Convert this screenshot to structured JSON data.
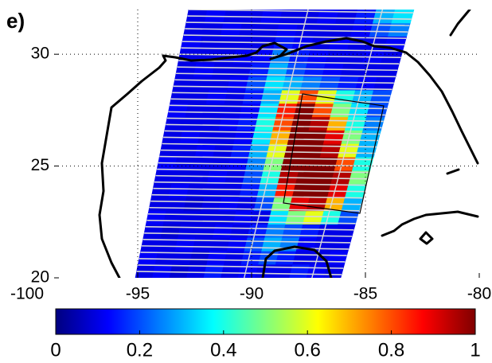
{
  "panel_label": "e)",
  "chart_data": {
    "type": "heatmap",
    "colormap": "jet",
    "grid": true,
    "xlim": [
      -100,
      -80
    ],
    "xticks": [
      -100,
      -95,
      -90,
      -85,
      -80
    ],
    "ylim": [
      20,
      32
    ],
    "yticks": [
      20,
      25,
      30
    ],
    "values": [
      [
        0.1,
        0.12,
        0.08,
        0.1,
        0.15,
        0.1,
        0.12,
        0.1,
        0.1,
        0.15,
        0.12,
        0.1
      ],
      [
        0.12,
        0.1,
        0.1,
        0.08,
        0.12,
        0.1,
        0.15,
        0.2,
        0.15,
        0.1,
        0.1,
        0.12
      ],
      [
        0.1,
        0.1,
        0.12,
        0.1,
        0.1,
        0.12,
        0.2,
        0.3,
        0.25,
        0.12,
        0.1,
        0.1
      ],
      [
        0.1,
        0.08,
        0.1,
        0.1,
        0.12,
        0.1,
        0.15,
        0.25,
        0.2,
        0.15,
        0.1,
        0.1
      ],
      [
        0.12,
        0.1,
        0.1,
        0.1,
        0.1,
        0.12,
        0.1,
        0.35,
        0.5,
        0.6,
        0.4,
        0.2
      ],
      [
        0.1,
        0.1,
        0.08,
        0.1,
        0.12,
        0.1,
        0.2,
        0.5,
        0.9,
        0.95,
        0.7,
        0.3
      ],
      [
        0.1,
        0.12,
        0.1,
        0.1,
        0.1,
        0.15,
        0.3,
        0.85,
        1,
        1,
        0.9,
        0.4
      ],
      [
        0.1,
        0.1,
        0.1,
        0.12,
        0.1,
        0.2,
        0.4,
        0.95,
        1,
        1,
        0.95,
        0.5
      ],
      [
        0.12,
        0.1,
        0.1,
        0.1,
        0.12,
        0.25,
        0.5,
        1,
        1,
        1,
        0.8,
        0.4
      ],
      [
        0.1,
        0.1,
        0.12,
        0.1,
        0.15,
        0.3,
        0.6,
        1,
        1,
        0.95,
        0.6,
        0.3
      ],
      [
        0.1,
        0.12,
        0.1,
        0.1,
        0.12,
        0.35,
        0.7,
        1,
        1,
        0.9,
        0.5,
        0.3
      ],
      [
        0.1,
        0.1,
        0.1,
        0.12,
        0.15,
        0.4,
        0.8,
        1,
        0.95,
        0.7,
        0.4,
        0.25
      ],
      [
        0.12,
        0.1,
        0.1,
        0.1,
        0.12,
        0.35,
        0.85,
        1,
        0.8,
        0.5,
        0.35,
        0.2
      ],
      [
        0.1,
        0.1,
        0.12,
        0.1,
        0.15,
        0.3,
        0.6,
        0.8,
        0.6,
        0.4,
        0.3,
        0.2
      ],
      [
        0.1,
        0.1,
        0.1,
        0.12,
        0.2,
        0.35,
        0.3,
        0.25,
        0.2,
        0.15,
        0.12,
        0.1
      ],
      [
        0.1,
        0.12,
        0.1,
        0.1,
        0.15,
        0.3,
        0.2,
        0.15,
        0.12,
        0.1,
        0.1,
        0.1
      ],
      [
        0.1,
        0.1,
        0.1,
        0.12,
        0.12,
        0.25,
        0.15,
        0.12,
        0.1,
        0.1,
        0.12,
        0.1
      ],
      [
        0.12,
        0.1,
        0.1,
        0.1,
        0.1,
        0.15,
        0.12,
        0.1,
        0.12,
        0.1,
        0.1,
        0.12
      ],
      [
        0.1,
        0.1,
        0.12,
        0.1,
        0.1,
        0.12,
        0.1,
        0.1,
        0.1,
        0.12,
        0.2,
        0.25
      ],
      [
        0.1,
        0.12,
        0.1,
        0.1,
        0.12,
        0.1,
        0.1,
        0.12,
        0.1,
        0.15,
        0.3,
        0.35
      ]
    ],
    "colorbar": {
      "lim": [
        0,
        1
      ],
      "ticks": [
        0,
        0.2,
        0.4,
        0.6,
        0.8,
        1
      ]
    }
  }
}
